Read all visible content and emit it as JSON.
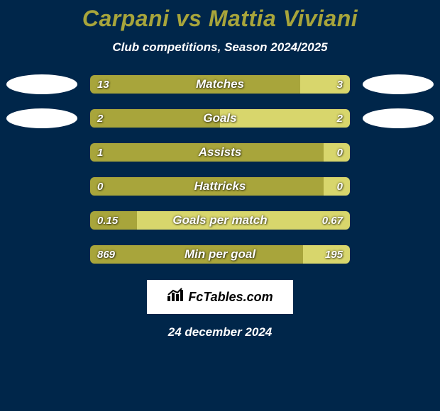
{
  "background_color": "#00264a",
  "text_color": "#ffffff",
  "title": "Carpani vs Mattia Viviani",
  "title_color": "#a8a53b",
  "subtitle": "Club competitions, Season 2024/2025",
  "left_color": "#a8a53b",
  "right_color": "#d8d66c",
  "badge_left_color": "#ffffff",
  "badge_right_color": "#ffffff",
  "bars": [
    {
      "label": "Matches",
      "left_val": "13",
      "right_val": "3",
      "left_pct": 81,
      "right_pct": 19,
      "show_badges": true
    },
    {
      "label": "Goals",
      "left_val": "2",
      "right_val": "2",
      "left_pct": 50,
      "right_pct": 50,
      "show_badges": true
    },
    {
      "label": "Assists",
      "left_val": "1",
      "right_val": "0",
      "left_pct": 90,
      "right_pct": 10,
      "show_badges": false
    },
    {
      "label": "Hattricks",
      "left_val": "0",
      "right_val": "0",
      "left_pct": 90,
      "right_pct": 10,
      "show_badges": false
    },
    {
      "label": "Goals per match",
      "left_val": "0.15",
      "right_val": "0.67",
      "left_pct": 18,
      "right_pct": 82,
      "show_badges": false
    },
    {
      "label": "Min per goal",
      "left_val": "869",
      "right_val": "195",
      "left_pct": 82,
      "right_pct": 18,
      "show_badges": false
    }
  ],
  "logo_text": "FcTables.com",
  "footer_date": "24 december 2024"
}
